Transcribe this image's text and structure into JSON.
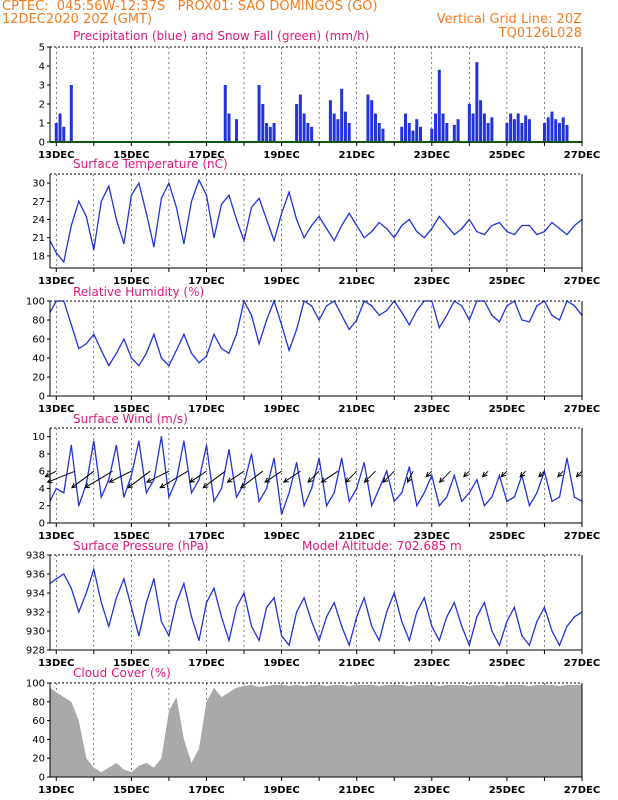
{
  "header": {
    "line1_left": "CPTEC:  045:56W-12:37S   PROX01: SAO DOMINGOS (GO)",
    "line2_left": "12DEC2020 20Z (GMT)",
    "line2_right": "Vertical Grid Line: 20Z",
    "line3_right": "TQ0126L028"
  },
  "colors": {
    "header": "#f47c20",
    "title": "#e0167d",
    "series": "#2233dd",
    "snow": "#22aa22",
    "cloud": "#a9a9a9"
  },
  "date_labels": [
    "13DEC",
    "15DEC",
    "17DEC",
    "19DEC",
    "21DEC",
    "23DEC",
    "25DEC",
    "27DEC"
  ],
  "chart_data": [
    {
      "id": "precip",
      "type": "bar",
      "title": "Precipitation (blue) and Snow Fall (green) (mm/h)",
      "ylim": [
        0,
        5
      ],
      "yticks": [
        0,
        1,
        2,
        3,
        4,
        5
      ],
      "xlim": [
        12.833,
        27.0
      ],
      "x_unit": "day of December 2020",
      "series": [
        {
          "name": "Precipitation",
          "x": [
            13.0,
            13.1,
            13.2,
            13.4,
            17.5,
            17.6,
            17.8,
            18.4,
            18.5,
            18.6,
            18.7,
            18.8,
            19.4,
            19.5,
            19.6,
            19.7,
            19.8,
            20.3,
            20.4,
            20.5,
            20.6,
            20.7,
            20.8,
            21.3,
            21.4,
            21.5,
            21.6,
            21.7,
            22.2,
            22.3,
            22.4,
            22.5,
            22.6,
            22.7,
            23.0,
            23.1,
            23.2,
            23.3,
            23.4,
            23.6,
            23.7,
            24.0,
            24.1,
            24.2,
            24.3,
            24.4,
            24.5,
            24.6,
            25.0,
            25.1,
            25.2,
            25.3,
            25.4,
            25.5,
            25.6,
            26.0,
            26.1,
            26.2,
            26.3,
            26.4,
            26.5,
            26.6
          ],
          "values": [
            1.0,
            1.5,
            0.8,
            3.0,
            3.0,
            1.5,
            1.2,
            3.0,
            2.0,
            1.0,
            0.8,
            1.0,
            2.0,
            2.5,
            1.5,
            1.0,
            0.8,
            2.2,
            1.5,
            1.2,
            2.8,
            1.6,
            1.0,
            2.5,
            2.2,
            1.5,
            1.0,
            0.7,
            0.8,
            1.5,
            1.0,
            0.6,
            1.2,
            0.8,
            0.7,
            1.5,
            3.8,
            1.5,
            1.0,
            0.9,
            1.2,
            2.0,
            1.5,
            4.2,
            2.2,
            1.5,
            1.0,
            1.3,
            1.0,
            1.5,
            1.2,
            1.5,
            1.0,
            1.4,
            1.2,
            1.0,
            1.3,
            1.6,
            1.2,
            1.0,
            1.3,
            0.9
          ]
        },
        {
          "name": "Snow Fall",
          "x": [
            12.833,
            27.0
          ],
          "values": [
            0,
            0
          ]
        }
      ]
    },
    {
      "id": "temp",
      "type": "line",
      "title": "Surface Temperature (nC)",
      "ylim": [
        16.0,
        31.5
      ],
      "yticks": [
        18,
        21,
        24,
        27,
        30
      ],
      "series": [
        {
          "name": "Temperature",
          "x": [
            12.833,
            13.0,
            13.2,
            13.4,
            13.6,
            13.8,
            14.0,
            14.2,
            14.4,
            14.6,
            14.8,
            15.0,
            15.2,
            15.4,
            15.6,
            15.8,
            16.0,
            16.2,
            16.4,
            16.6,
            16.8,
            17.0,
            17.2,
            17.4,
            17.6,
            17.8,
            18.0,
            18.2,
            18.4,
            18.6,
            18.8,
            19.0,
            19.2,
            19.4,
            19.6,
            19.8,
            20.0,
            20.2,
            20.4,
            20.6,
            20.8,
            21.0,
            21.2,
            21.4,
            21.6,
            21.8,
            22.0,
            22.2,
            22.4,
            22.6,
            22.8,
            23.0,
            23.2,
            23.4,
            23.6,
            23.8,
            24.0,
            24.2,
            24.4,
            24.6,
            24.8,
            25.0,
            25.2,
            25.4,
            25.6,
            25.8,
            26.0,
            26.2,
            26.4,
            26.6,
            26.8,
            27.0
          ],
          "values": [
            20.5,
            18.5,
            17.0,
            23.0,
            27.0,
            24.5,
            19.0,
            27.0,
            29.5,
            24.0,
            20.0,
            28.0,
            30.0,
            25.0,
            19.5,
            27.5,
            30.0,
            26.0,
            20.0,
            27.0,
            30.5,
            28.0,
            21.0,
            26.5,
            28.0,
            24.0,
            20.5,
            26.0,
            27.5,
            24.0,
            20.5,
            25.0,
            28.5,
            24.0,
            21.0,
            23.0,
            24.5,
            22.5,
            20.5,
            23.0,
            25.0,
            23.0,
            21.0,
            22.0,
            23.5,
            22.5,
            21.0,
            23.0,
            24.0,
            22.0,
            21.0,
            22.5,
            24.5,
            23.0,
            21.5,
            22.5,
            24.0,
            22.0,
            21.5,
            23.0,
            23.5,
            22.0,
            21.5,
            23.0,
            23.0,
            21.5,
            22.0,
            23.5,
            22.5,
            21.5,
            23.0,
            24.0
          ]
        }
      ]
    },
    {
      "id": "rh",
      "type": "line",
      "title": "Relative Humidity (%)",
      "ylim": [
        0,
        100
      ],
      "yticks": [
        0,
        20,
        40,
        60,
        80,
        100
      ],
      "series": [
        {
          "name": "Relative Humidity",
          "x": [
            12.833,
            13.0,
            13.2,
            13.4,
            13.6,
            13.8,
            14.0,
            14.2,
            14.4,
            14.6,
            14.8,
            15.0,
            15.2,
            15.4,
            15.6,
            15.8,
            16.0,
            16.2,
            16.4,
            16.6,
            16.8,
            17.0,
            17.2,
            17.4,
            17.6,
            17.8,
            18.0,
            18.2,
            18.4,
            18.6,
            18.8,
            19.0,
            19.2,
            19.4,
            19.6,
            19.8,
            20.0,
            20.2,
            20.4,
            20.6,
            20.8,
            21.0,
            21.2,
            21.4,
            21.6,
            21.8,
            22.0,
            22.2,
            22.4,
            22.6,
            22.8,
            23.0,
            23.2,
            23.4,
            23.6,
            23.8,
            24.0,
            24.2,
            24.4,
            24.6,
            24.8,
            25.0,
            25.2,
            25.4,
            25.6,
            25.8,
            26.0,
            26.2,
            26.4,
            26.6,
            26.8,
            27.0
          ],
          "values": [
            88,
            100,
            100,
            75,
            50,
            55,
            65,
            48,
            32,
            45,
            60,
            40,
            32,
            45,
            65,
            40,
            32,
            48,
            65,
            45,
            35,
            42,
            65,
            50,
            45,
            65,
            100,
            85,
            55,
            80,
            100,
            75,
            48,
            70,
            100,
            95,
            80,
            95,
            100,
            85,
            70,
            80,
            100,
            95,
            85,
            90,
            100,
            88,
            75,
            90,
            100,
            100,
            72,
            85,
            100,
            95,
            80,
            100,
            100,
            85,
            78,
            95,
            100,
            80,
            78,
            95,
            100,
            85,
            80,
            100,
            95,
            85
          ]
        }
      ]
    },
    {
      "id": "wind",
      "type": "line",
      "title": "Surface Wind (m/s)",
      "ylim": [
        0,
        11
      ],
      "yticks": [
        0,
        2,
        4,
        6,
        8,
        10
      ],
      "series": [
        {
          "name": "Wind Speed",
          "x": [
            12.833,
            13.0,
            13.2,
            13.4,
            13.6,
            13.8,
            14.0,
            14.2,
            14.4,
            14.6,
            14.8,
            15.0,
            15.2,
            15.4,
            15.6,
            15.8,
            16.0,
            16.2,
            16.4,
            16.6,
            16.8,
            17.0,
            17.2,
            17.4,
            17.6,
            17.8,
            18.0,
            18.2,
            18.4,
            18.6,
            18.8,
            19.0,
            19.2,
            19.4,
            19.6,
            19.8,
            20.0,
            20.2,
            20.4,
            20.6,
            20.8,
            21.0,
            21.2,
            21.4,
            21.6,
            21.8,
            22.0,
            22.2,
            22.4,
            22.6,
            22.8,
            23.0,
            23.2,
            23.4,
            23.6,
            23.8,
            24.0,
            24.2,
            24.4,
            24.6,
            24.8,
            25.0,
            25.2,
            25.4,
            25.6,
            25.8,
            26.0,
            26.2,
            26.4,
            26.6,
            26.8,
            27.0
          ],
          "values": [
            2.5,
            4.0,
            3.5,
            9.0,
            2.0,
            4.5,
            9.5,
            3.0,
            5.0,
            9.0,
            3.0,
            5.5,
            9.5,
            3.5,
            5.0,
            10.0,
            3.0,
            5.0,
            9.5,
            3.5,
            5.0,
            9.0,
            2.5,
            4.0,
            8.5,
            3.0,
            4.5,
            8.0,
            2.5,
            4.0,
            7.5,
            1.0,
            3.5,
            7.0,
            2.0,
            4.0,
            7.5,
            2.0,
            3.5,
            7.5,
            2.5,
            4.0,
            7.0,
            2.0,
            4.0,
            6.0,
            2.5,
            3.5,
            6.5,
            2.0,
            3.5,
            5.5,
            2.0,
            3.0,
            5.5,
            2.5,
            3.5,
            5.0,
            2.0,
            3.0,
            5.5,
            2.5,
            3.0,
            5.5,
            2.0,
            3.5,
            6.0,
            2.5,
            3.0,
            7.5,
            3.0,
            2.5
          ]
        }
      ],
      "wind_vectors": {
        "x": [
          13.0,
          13.5,
          14.0,
          14.5,
          15.0,
          15.5,
          16.0,
          16.5,
          17.0,
          17.5,
          18.0,
          18.5,
          19.0,
          19.5,
          20.0,
          20.5,
          21.0,
          21.5,
          22.0,
          22.5,
          23.0,
          23.5,
          24.0,
          24.5,
          25.0,
          25.5,
          26.0,
          26.5,
          27.0
        ],
        "u": [
          -2,
          -5,
          -4,
          -5,
          -4,
          -4,
          -4,
          -5,
          -3,
          -4,
          -3,
          -4,
          -3,
          -3,
          -2,
          -3,
          -2,
          -2,
          -2,
          -1,
          -1,
          -2,
          -1,
          -1,
          -1,
          -1,
          -1,
          -1,
          -1
        ],
        "v": [
          -1,
          -2,
          -3,
          -3,
          -2,
          -3,
          -2,
          -3,
          -2,
          -3,
          -2,
          -3,
          -2,
          -2,
          -2,
          -2,
          -2,
          -2,
          -2,
          -2,
          -1,
          -2,
          -1,
          -1,
          -1,
          -1,
          -1,
          -1,
          -1
        ]
      }
    },
    {
      "id": "press",
      "type": "line",
      "title": "Surface Pressure (hPa)",
      "subtitle": "Model Altitude: 702.685 m",
      "ylim": [
        928,
        938
      ],
      "yticks": [
        928,
        930,
        932,
        934,
        936,
        938
      ],
      "series": [
        {
          "name": "Pressure",
          "x": [
            12.833,
            13.0,
            13.2,
            13.4,
            13.6,
            13.8,
            14.0,
            14.2,
            14.4,
            14.6,
            14.8,
            15.0,
            15.2,
            15.4,
            15.6,
            15.8,
            16.0,
            16.2,
            16.4,
            16.6,
            16.8,
            17.0,
            17.2,
            17.4,
            17.6,
            17.8,
            18.0,
            18.2,
            18.4,
            18.6,
            18.8,
            19.0,
            19.2,
            19.4,
            19.6,
            19.8,
            20.0,
            20.2,
            20.4,
            20.6,
            20.8,
            21.0,
            21.2,
            21.4,
            21.6,
            21.8,
            22.0,
            22.2,
            22.4,
            22.6,
            22.8,
            23.0,
            23.2,
            23.4,
            23.6,
            23.8,
            24.0,
            24.2,
            24.4,
            24.6,
            24.8,
            25.0,
            25.2,
            25.4,
            25.6,
            25.8,
            26.0,
            26.2,
            26.4,
            26.6,
            26.8,
            27.0
          ],
          "values": [
            935.0,
            935.5,
            936.0,
            934.5,
            932.0,
            934.0,
            936.5,
            933.0,
            930.5,
            933.5,
            935.5,
            932.5,
            929.5,
            933.0,
            935.5,
            931.0,
            929.5,
            933.0,
            935.0,
            931.5,
            929.0,
            933.0,
            934.5,
            931.5,
            929.0,
            932.5,
            934.0,
            930.5,
            929.0,
            932.5,
            933.5,
            929.5,
            928.5,
            932.0,
            933.5,
            931.0,
            929.0,
            931.5,
            933.0,
            930.5,
            928.5,
            931.5,
            933.5,
            930.5,
            929.0,
            932.0,
            934.0,
            931.0,
            929.0,
            932.0,
            933.5,
            930.5,
            929.0,
            931.5,
            933.0,
            930.5,
            928.5,
            931.5,
            933.0,
            930.0,
            928.5,
            931.0,
            932.5,
            929.5,
            928.5,
            931.0,
            932.5,
            930.0,
            928.5,
            930.5,
            931.5,
            932.0
          ]
        }
      ]
    },
    {
      "id": "cloud",
      "type": "bar",
      "title": "Cloud Cover (%)",
      "ylim": [
        0,
        100
      ],
      "yticks": [
        0,
        20,
        40,
        60,
        80,
        100
      ],
      "series": [
        {
          "name": "Cloud Cover",
          "x": [
            12.833,
            13.0,
            13.2,
            13.4,
            13.6,
            13.8,
            14.0,
            14.2,
            14.4,
            14.6,
            14.8,
            15.0,
            15.2,
            15.4,
            15.6,
            15.8,
            16.0,
            16.2,
            16.4,
            16.6,
            16.8,
            17.0,
            17.2,
            17.4,
            17.6,
            17.8,
            18.0,
            18.2,
            18.4,
            18.6,
            18.8,
            19.0,
            19.2,
            19.4,
            19.6,
            19.8,
            20.0,
            20.2,
            20.4,
            20.6,
            20.8,
            21.0,
            21.2,
            21.4,
            21.6,
            21.8,
            22.0,
            22.2,
            22.4,
            22.6,
            22.8,
            23.0,
            23.2,
            23.4,
            23.6,
            23.8,
            24.0,
            24.2,
            24.4,
            24.6,
            24.8,
            25.0,
            25.2,
            25.4,
            25.6,
            25.8,
            26.0,
            26.2,
            26.4,
            26.6,
            26.8,
            27.0
          ],
          "values": [
            95,
            90,
            85,
            80,
            60,
            20,
            10,
            5,
            10,
            15,
            8,
            5,
            12,
            15,
            10,
            20,
            70,
            85,
            40,
            15,
            30,
            80,
            95,
            85,
            90,
            95,
            97,
            98,
            96,
            97,
            98,
            98,
            97,
            98,
            97,
            98,
            98,
            97,
            98,
            98,
            97,
            98,
            98,
            98,
            97,
            98,
            98,
            98,
            97,
            98,
            98,
            98,
            97,
            98,
            98,
            98,
            97,
            98,
            98,
            98,
            97,
            98,
            98,
            98,
            97,
            98,
            98,
            98,
            97,
            98,
            98,
            98
          ]
        }
      ]
    }
  ]
}
